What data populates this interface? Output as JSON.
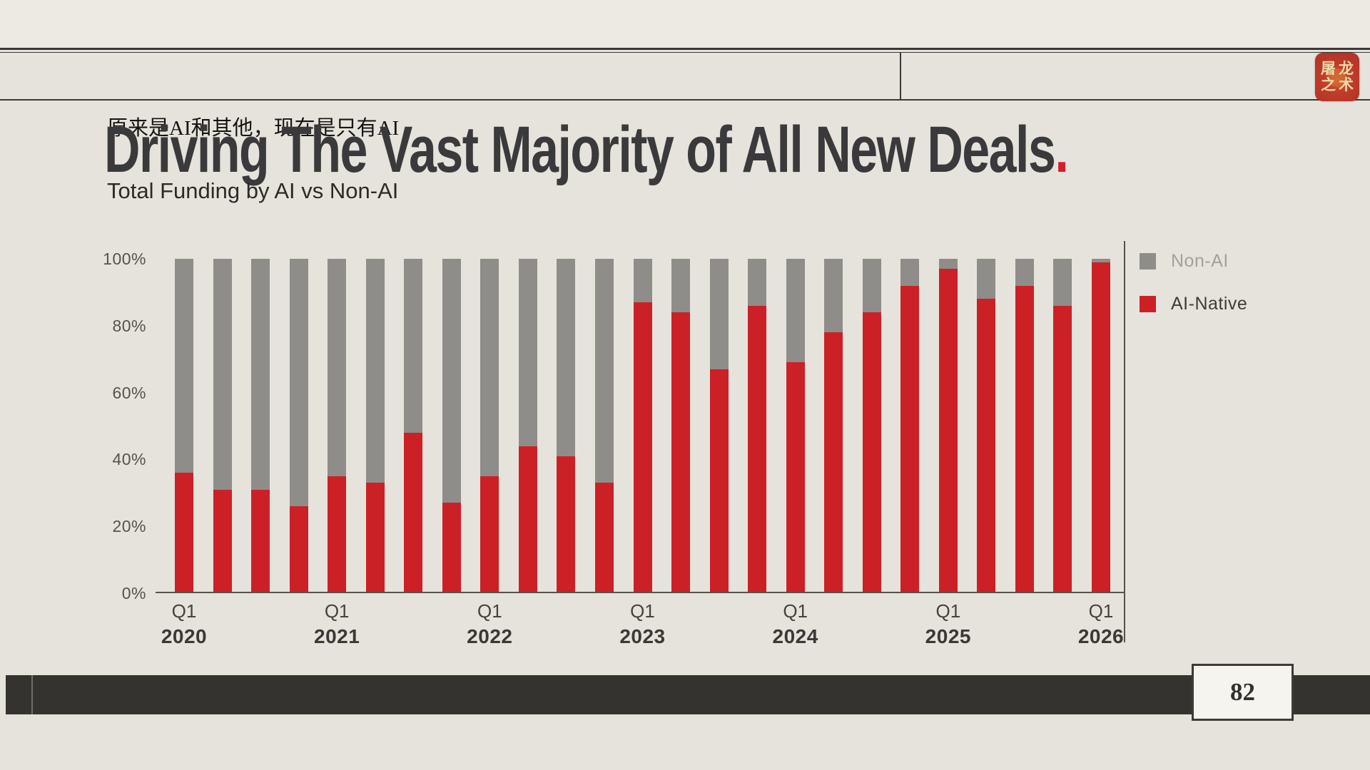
{
  "page": {
    "page_number": "82"
  },
  "header": {
    "note": "原来是AI和其他，现在是只有AI"
  },
  "logo": {
    "chars_top": "屠龙",
    "chars_bottom": "之术"
  },
  "title": {
    "text": "Driving The Vast Majority of All New Deals",
    "period": ".",
    "accent_color": "#d41f26"
  },
  "subtitle": "Total Funding by AI vs Non-AI",
  "legend": [
    {
      "label": "Non-AI",
      "color": "#8f8d8a",
      "text_color": "#a3a19d"
    },
    {
      "label": "AI-Native",
      "color": "#cc2027",
      "text_color": "#3d3c39"
    }
  ],
  "chart_data": {
    "type": "bar",
    "stacked": true,
    "title": "Total Funding by AI vs Non-AI",
    "xlabel": "",
    "ylabel": "",
    "ylim": [
      0,
      100
    ],
    "grid": false,
    "legend_position": "right",
    "y_ticks": [
      "0%",
      "20%",
      "40%",
      "60%",
      "80%",
      "100%"
    ],
    "categories": [
      "Q1 2020",
      "Q2 2020",
      "Q3 2020",
      "Q4 2020",
      "Q1 2021",
      "Q2 2021",
      "Q3 2021",
      "Q4 2021",
      "Q1 2022",
      "Q2 2022",
      "Q3 2022",
      "Q4 2022",
      "Q1 2023",
      "Q2 2023",
      "Q3 2023",
      "Q4 2023",
      "Q1 2024",
      "Q2 2024",
      "Q3 2024",
      "Q4 2024",
      "Q1 2025",
      "Q2 2025",
      "Q3 2025",
      "Q4 2025",
      "Q1 2026"
    ],
    "series": [
      {
        "name": "Non-AI",
        "color": "#8f8d8a",
        "values": [
          64,
          69,
          69,
          74,
          65,
          67,
          52,
          73,
          65,
          56,
          59,
          67,
          13,
          16,
          33,
          14,
          31,
          22,
          16,
          8,
          3,
          12,
          8,
          14,
          1
        ]
      },
      {
        "name": "AI-Native",
        "color": "#cc2027",
        "values": [
          36,
          31,
          31,
          26,
          35,
          33,
          48,
          27,
          35,
          44,
          41,
          33,
          87,
          84,
          67,
          86,
          69,
          78,
          84,
          92,
          97,
          88,
          92,
          86,
          99
        ]
      }
    ],
    "x_tick_labels": [
      {
        "index": 0,
        "quarter": "Q1",
        "year": "2020"
      },
      {
        "index": 4,
        "quarter": "Q1",
        "year": "2021"
      },
      {
        "index": 8,
        "quarter": "Q1",
        "year": "2022"
      },
      {
        "index": 12,
        "quarter": "Q1",
        "year": "2023"
      },
      {
        "index": 16,
        "quarter": "Q1",
        "year": "2024"
      },
      {
        "index": 20,
        "quarter": "Q1",
        "year": "2025"
      },
      {
        "index": 24,
        "quarter": "Q1",
        "year": "2026"
      }
    ]
  }
}
